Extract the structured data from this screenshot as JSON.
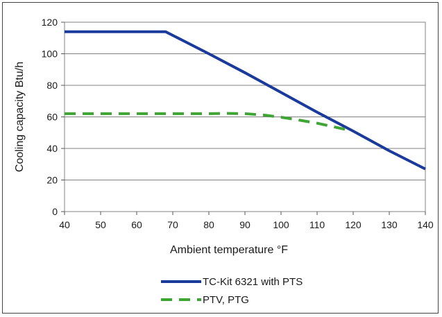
{
  "chart_data": {
    "type": "line",
    "xlabel": "Ambient temperature °F",
    "ylabel": "Cooling capacity Btu/h",
    "xlim": [
      40,
      140
    ],
    "ylim": [
      0,
      120
    ],
    "x_ticks": [
      40,
      50,
      60,
      70,
      80,
      90,
      100,
      110,
      120,
      130,
      140
    ],
    "y_ticks": [
      0,
      20,
      40,
      60,
      80,
      100,
      120
    ],
    "grid": "horizontal",
    "legend_position": "bottom",
    "series": [
      {
        "name": "TC-Kit 6321 with PTS",
        "color": "#1a3a9c",
        "style": "solid",
        "x": [
          40,
          68,
          80,
          90,
          100,
          110,
          120,
          130,
          140
        ],
        "y": [
          114,
          114,
          100,
          88,
          75.5,
          63,
          51,
          38.5,
          27
        ]
      },
      {
        "name": "PTV, PTG",
        "color": "#3fa535",
        "style": "dashed",
        "x": [
          40,
          60,
          70,
          80,
          85,
          90,
          95,
          100,
          105,
          110,
          115,
          118
        ],
        "y": [
          62,
          62,
          62,
          62,
          62.2,
          62,
          61.2,
          59.8,
          58,
          56,
          53.5,
          52
        ]
      }
    ]
  }
}
